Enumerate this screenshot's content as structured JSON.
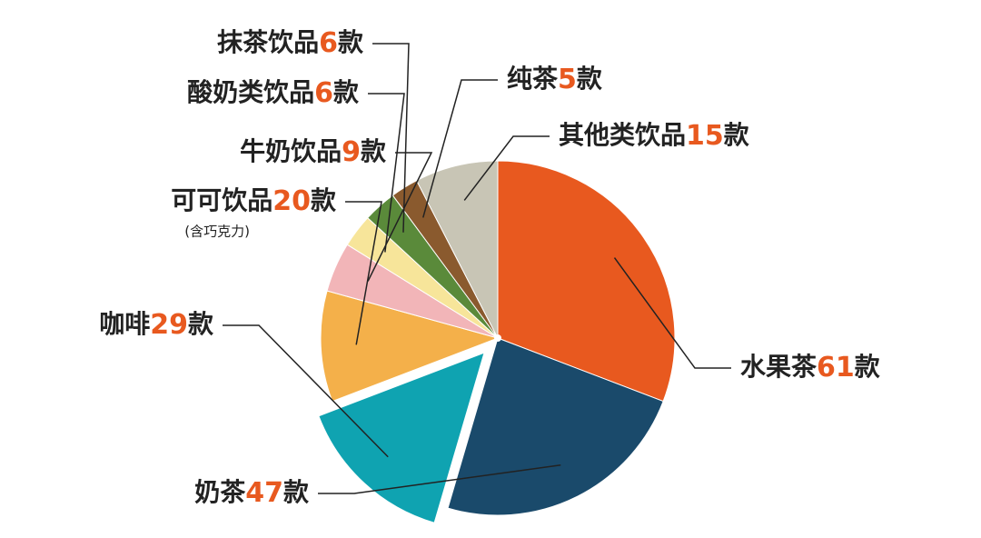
{
  "chart_data": {
    "type": "pie",
    "categories": [
      "水果茶",
      "奶茶",
      "咖啡",
      "可可饮品",
      "牛奶饮品",
      "酸奶类饮品",
      "抹茶饮品",
      "纯茶",
      "其他类饮品"
    ],
    "values": [
      61,
      47,
      29,
      20,
      9,
      6,
      6,
      5,
      15
    ],
    "unit": "款",
    "annotations": [
      "(含巧克力)"
    ],
    "colors": [
      "#e8591f",
      "#1a4a6b",
      "#0fa3b1",
      "#f4b04a",
      "#f2b5b8",
      "#f7e59a",
      "#5a8a3a",
      "#8a5a2e",
      "#c8c5b5"
    ]
  }
}
